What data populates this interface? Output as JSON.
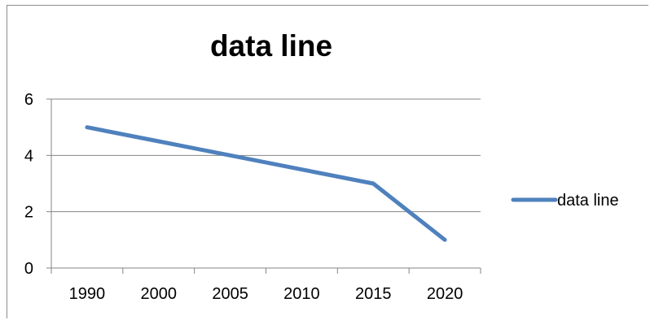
{
  "chart_data": {
    "type": "line",
    "title": "data line",
    "categories": [
      "1990",
      "2000",
      "2005",
      "2010",
      "2015",
      "2020"
    ],
    "series": [
      {
        "name": "data line",
        "values": [
          5,
          4.5,
          4,
          3.5,
          3,
          1
        ],
        "color": "#4f81bd"
      }
    ],
    "ylim": [
      0,
      6
    ],
    "yticks": [
      0,
      2,
      4,
      6
    ],
    "grid": true,
    "legend": "right",
    "xlabel": "",
    "ylabel": ""
  }
}
